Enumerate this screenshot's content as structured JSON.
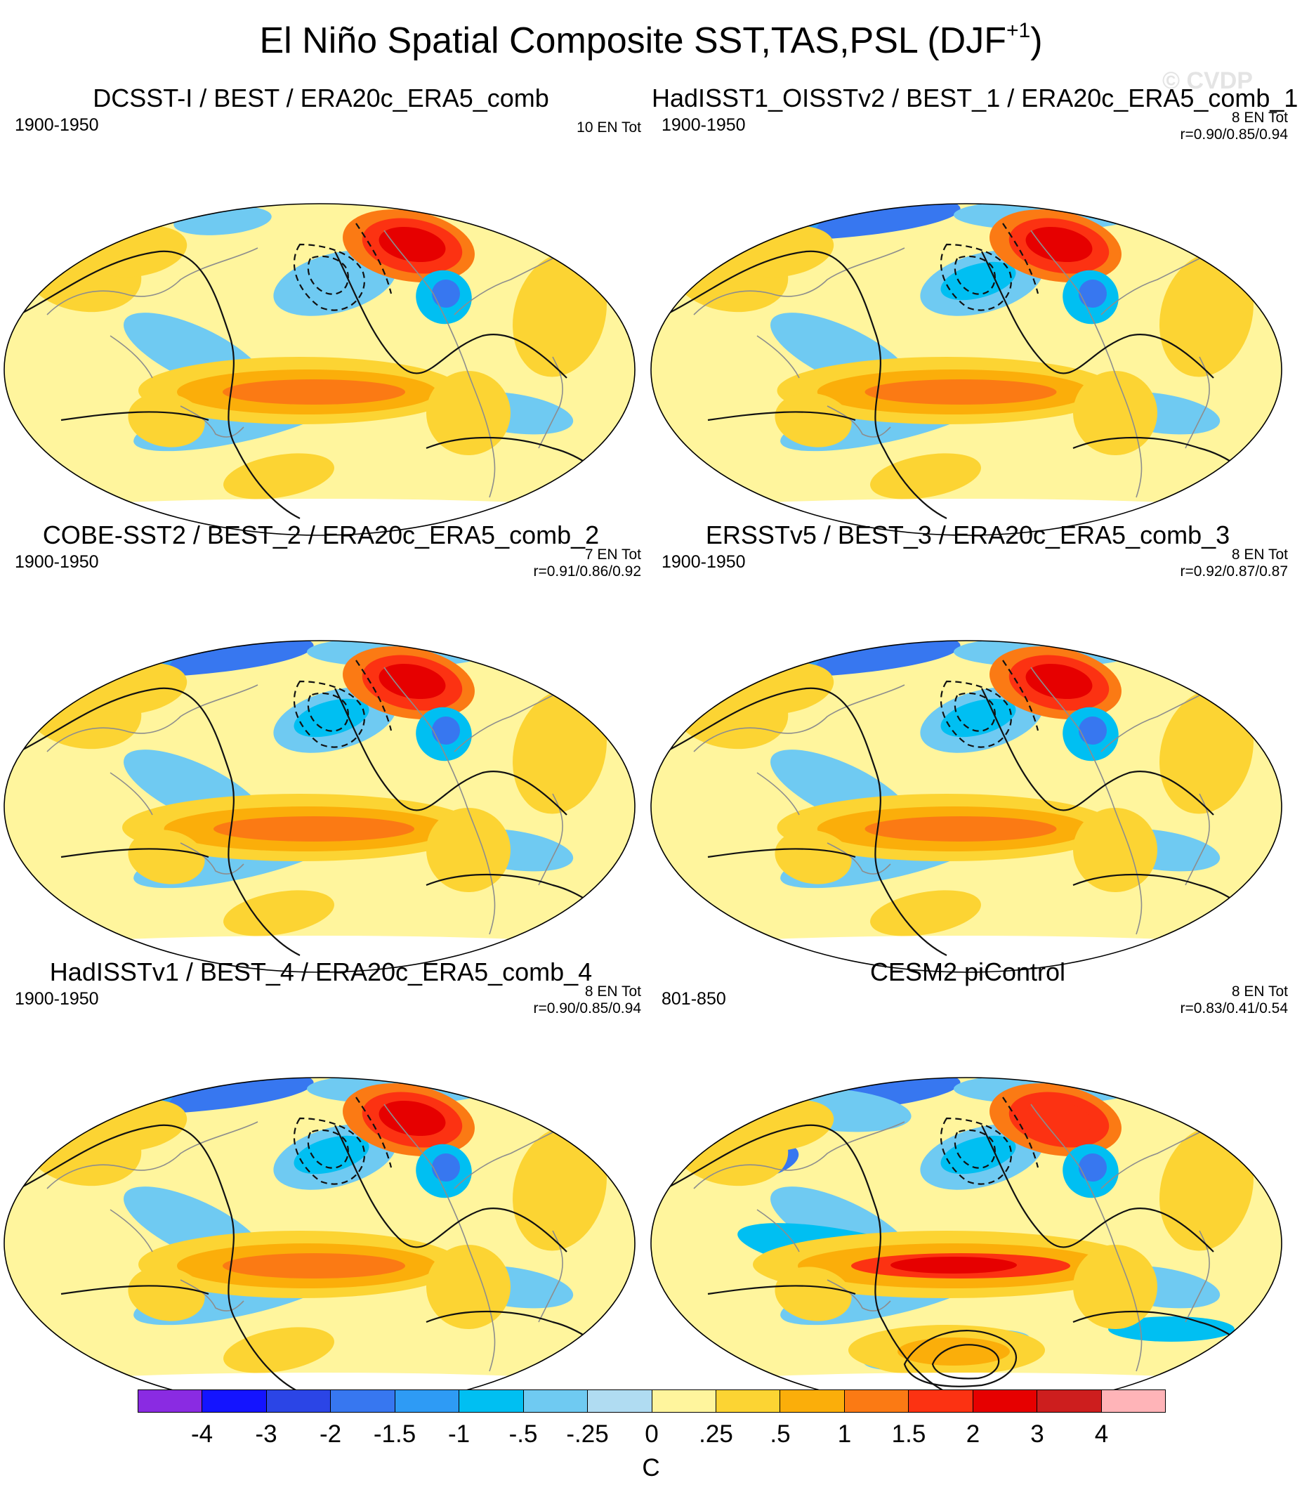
{
  "title": "El Niño Spatial Composite SST,TAS,PSL (DJF",
  "title_superscript": "+1",
  "title_close": ")",
  "watermark": "© CVDP",
  "panels": [
    {
      "title": "DCSST-I / BEST / ERA20c_ERA5_comb",
      "period": "1900-1950",
      "events": "10 EN Tot",
      "correlation": ""
    },
    {
      "title": "HadISST1_OISSTv2 / BEST_1 / ERA20c_ERA5_comb_1",
      "period": "1900-1950",
      "events": "8 EN Tot",
      "correlation": "r=0.90/0.85/0.94"
    },
    {
      "title": "COBE-SST2 / BEST_2 / ERA20c_ERA5_comb_2",
      "period": "1900-1950",
      "events": "7 EN Tot",
      "correlation": "r=0.91/0.86/0.92"
    },
    {
      "title": "ERSSTv5 / BEST_3 / ERA20c_ERA5_comb_3",
      "period": "1900-1950",
      "events": "8 EN Tot",
      "correlation": "r=0.92/0.87/0.87"
    },
    {
      "title": "HadISSTv1 / BEST_4 / ERA20c_ERA5_comb_4",
      "period": "1900-1950",
      "events": "8 EN Tot",
      "correlation": "r=0.90/0.85/0.94"
    },
    {
      "title": "CESM2 piControl",
      "period": "801-850",
      "events": "8 EN Tot",
      "correlation": "r=0.83/0.41/0.54"
    }
  ],
  "colorbar": {
    "colors": [
      "#8a2be2",
      "#1414ff",
      "#2b45e6",
      "#3777f0",
      "#2e9bf5",
      "#00bff2",
      "#6fcaf2",
      "#b0dcf2",
      "#fff59d",
      "#fcd433",
      "#fbae0a",
      "#fb7a14",
      "#fc3212",
      "#e60000",
      "#cd1e1e",
      "#ffb4b8"
    ],
    "labels": [
      "-4",
      "-3",
      "-2",
      "-1.5",
      "-1",
      "-.5",
      "-.25",
      "0",
      ".25",
      ".5",
      "1",
      "1.5",
      "2",
      "3",
      "4"
    ],
    "units": "C"
  }
}
